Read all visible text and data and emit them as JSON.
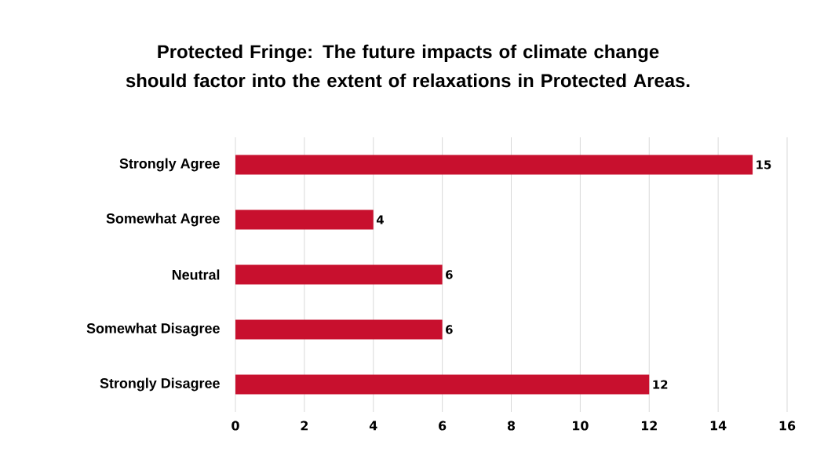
{
  "chart_data": {
    "type": "bar",
    "orientation": "horizontal",
    "title": "Protected Fringe: The future impacts of climate change should factor into the extent of relaxations in Protected Areas.",
    "categories": [
      "Strongly Agree",
      "Somewhat Agree",
      "Neutral",
      "Somewhat Disagree",
      "Strongly Disagree"
    ],
    "values": [
      15,
      4,
      6,
      6,
      12
    ],
    "color": "#c8102e",
    "xlim": [
      0,
      16
    ],
    "xticks": [
      0,
      2,
      4,
      6,
      8,
      10,
      12,
      14,
      16
    ],
    "grid": "x",
    "data_labels": true
  }
}
